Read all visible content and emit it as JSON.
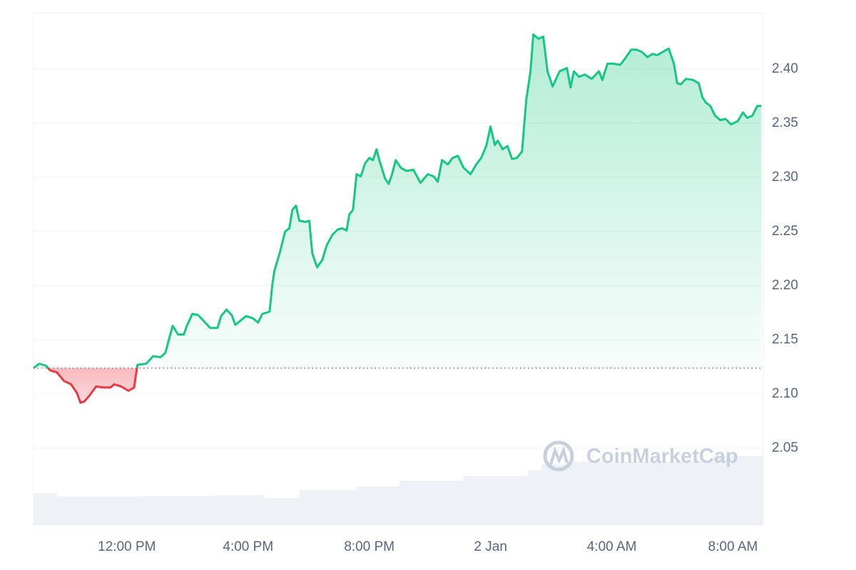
{
  "chart_data": {
    "type": "line",
    "watermark": "CoinMarketCap",
    "baseline": 2.124,
    "up_color": "#16c784",
    "down_color": "#ea3943",
    "grid": true,
    "xlim": [
      -3.08,
      21.0
    ],
    "xticks": [
      {
        "value": 0,
        "label": "12:00 PM"
      },
      {
        "value": 4,
        "label": "4:00 PM"
      },
      {
        "value": 8,
        "label": "8:00 PM"
      },
      {
        "value": 12,
        "label": "2 Jan"
      },
      {
        "value": 16,
        "label": "4:00 AM"
      },
      {
        "value": 20,
        "label": "8:00 AM"
      }
    ],
    "ylim": [
      1.979,
      2.452
    ],
    "yticks": [
      {
        "value": 2.05,
        "label": "2.05"
      },
      {
        "value": 2.1,
        "label": "2.10"
      },
      {
        "value": 2.15,
        "label": "2.15"
      },
      {
        "value": 2.2,
        "label": "2.20"
      },
      {
        "value": 2.25,
        "label": "2.25"
      },
      {
        "value": 2.3,
        "label": "2.30"
      },
      {
        "value": 2.35,
        "label": "2.35"
      },
      {
        "value": 2.4,
        "label": "2.40"
      }
    ],
    "x": [
      -3.08,
      -2.89,
      -2.66,
      -2.54,
      -2.31,
      -2.07,
      -1.84,
      -1.65,
      -1.53,
      -1.41,
      -1.25,
      -1.01,
      -0.78,
      -0.54,
      -0.42,
      -0.19,
      0.05,
      0.24,
      0.35,
      0.64,
      0.87,
      1.11,
      1.27,
      1.51,
      1.69,
      1.88,
      1.98,
      2.16,
      2.35,
      2.52,
      2.75,
      2.99,
      3.11,
      3.29,
      3.46,
      3.58,
      3.76,
      3.93,
      4.16,
      4.33,
      4.47,
      4.71,
      4.8,
      4.87,
      5.04,
      5.22,
      5.36,
      5.46,
      5.58,
      5.69,
      5.88,
      6.02,
      6.12,
      6.28,
      6.45,
      6.59,
      6.78,
      6.96,
      7.11,
      7.25,
      7.34,
      7.46,
      7.58,
      7.72,
      7.86,
      8.0,
      8.12,
      8.24,
      8.33,
      8.52,
      8.64,
      8.75,
      8.87,
      9.04,
      9.22,
      9.46,
      9.69,
      9.93,
      10.12,
      10.26,
      10.4,
      10.59,
      10.75,
      10.92,
      11.11,
      11.34,
      11.53,
      11.69,
      11.86,
      12.0,
      12.14,
      12.24,
      12.4,
      12.56,
      12.71,
      12.87,
      13.04,
      13.18,
      13.32,
      13.41,
      13.58,
      13.74,
      13.88,
      14.05,
      14.28,
      14.52,
      14.64,
      14.75,
      14.92,
      15.11,
      15.34,
      15.58,
      15.69,
      15.86,
      16.05,
      16.28,
      16.47,
      16.64,
      16.82,
      16.99,
      17.18,
      17.34,
      17.51,
      17.69,
      17.88,
      18.05,
      18.16,
      18.28,
      18.45,
      18.68,
      18.87,
      18.99,
      19.11,
      19.25,
      19.41,
      19.58,
      19.76,
      19.93,
      20.16,
      20.33,
      20.47,
      20.64,
      20.8,
      20.94
    ],
    "values": [
      2.124,
      2.128,
      2.126,
      2.122,
      2.12,
      2.112,
      2.109,
      2.101,
      2.092,
      2.093,
      2.098,
      2.107,
      2.106,
      2.106,
      2.109,
      2.107,
      2.103,
      2.106,
      2.127,
      2.128,
      2.135,
      2.134,
      2.138,
      2.163,
      2.155,
      2.155,
      2.163,
      2.174,
      2.173,
      2.168,
      2.161,
      2.161,
      2.172,
      2.178,
      2.173,
      2.164,
      2.168,
      2.172,
      2.17,
      2.166,
      2.174,
      2.176,
      2.201,
      2.214,
      2.23,
      2.25,
      2.253,
      2.27,
      2.274,
      2.26,
      2.259,
      2.26,
      2.23,
      2.217,
      2.224,
      2.237,
      2.247,
      2.252,
      2.253,
      2.251,
      2.266,
      2.27,
      2.303,
      2.301,
      2.313,
      2.318,
      2.316,
      2.326,
      2.316,
      2.299,
      2.294,
      2.303,
      2.316,
      2.309,
      2.306,
      2.307,
      2.295,
      2.303,
      2.301,
      2.296,
      2.316,
      2.312,
      2.318,
      2.32,
      2.309,
      2.303,
      2.312,
      2.318,
      2.329,
      2.347,
      2.33,
      2.334,
      2.326,
      2.329,
      2.317,
      2.318,
      2.324,
      2.372,
      2.398,
      2.432,
      2.428,
      2.43,
      2.398,
      2.384,
      2.398,
      2.401,
      2.383,
      2.398,
      2.393,
      2.395,
      2.391,
      2.398,
      2.39,
      2.405,
      2.405,
      2.404,
      2.411,
      2.418,
      2.418,
      2.416,
      2.411,
      2.414,
      2.413,
      2.416,
      2.419,
      2.405,
      2.387,
      2.386,
      2.391,
      2.39,
      2.387,
      2.374,
      2.369,
      2.366,
      2.357,
      2.353,
      2.354,
      2.349,
      2.352,
      2.36,
      2.355,
      2.357,
      2.366,
      2.366
    ],
    "volume": {
      "color": "#eef1f5",
      "ylim": [
        0,
        719
      ],
      "x": [
        -3.08,
        -2.31,
        0.52,
        2.87,
        4.52,
        5.69,
        7.58,
        8.99,
        11.11,
        13.22,
        13.69,
        14.64,
        19.34,
        20.99
      ],
      "values": [
        45,
        40,
        41,
        42,
        38,
        49,
        54,
        62,
        69,
        77,
        85,
        89,
        97,
        101
      ]
    }
  }
}
